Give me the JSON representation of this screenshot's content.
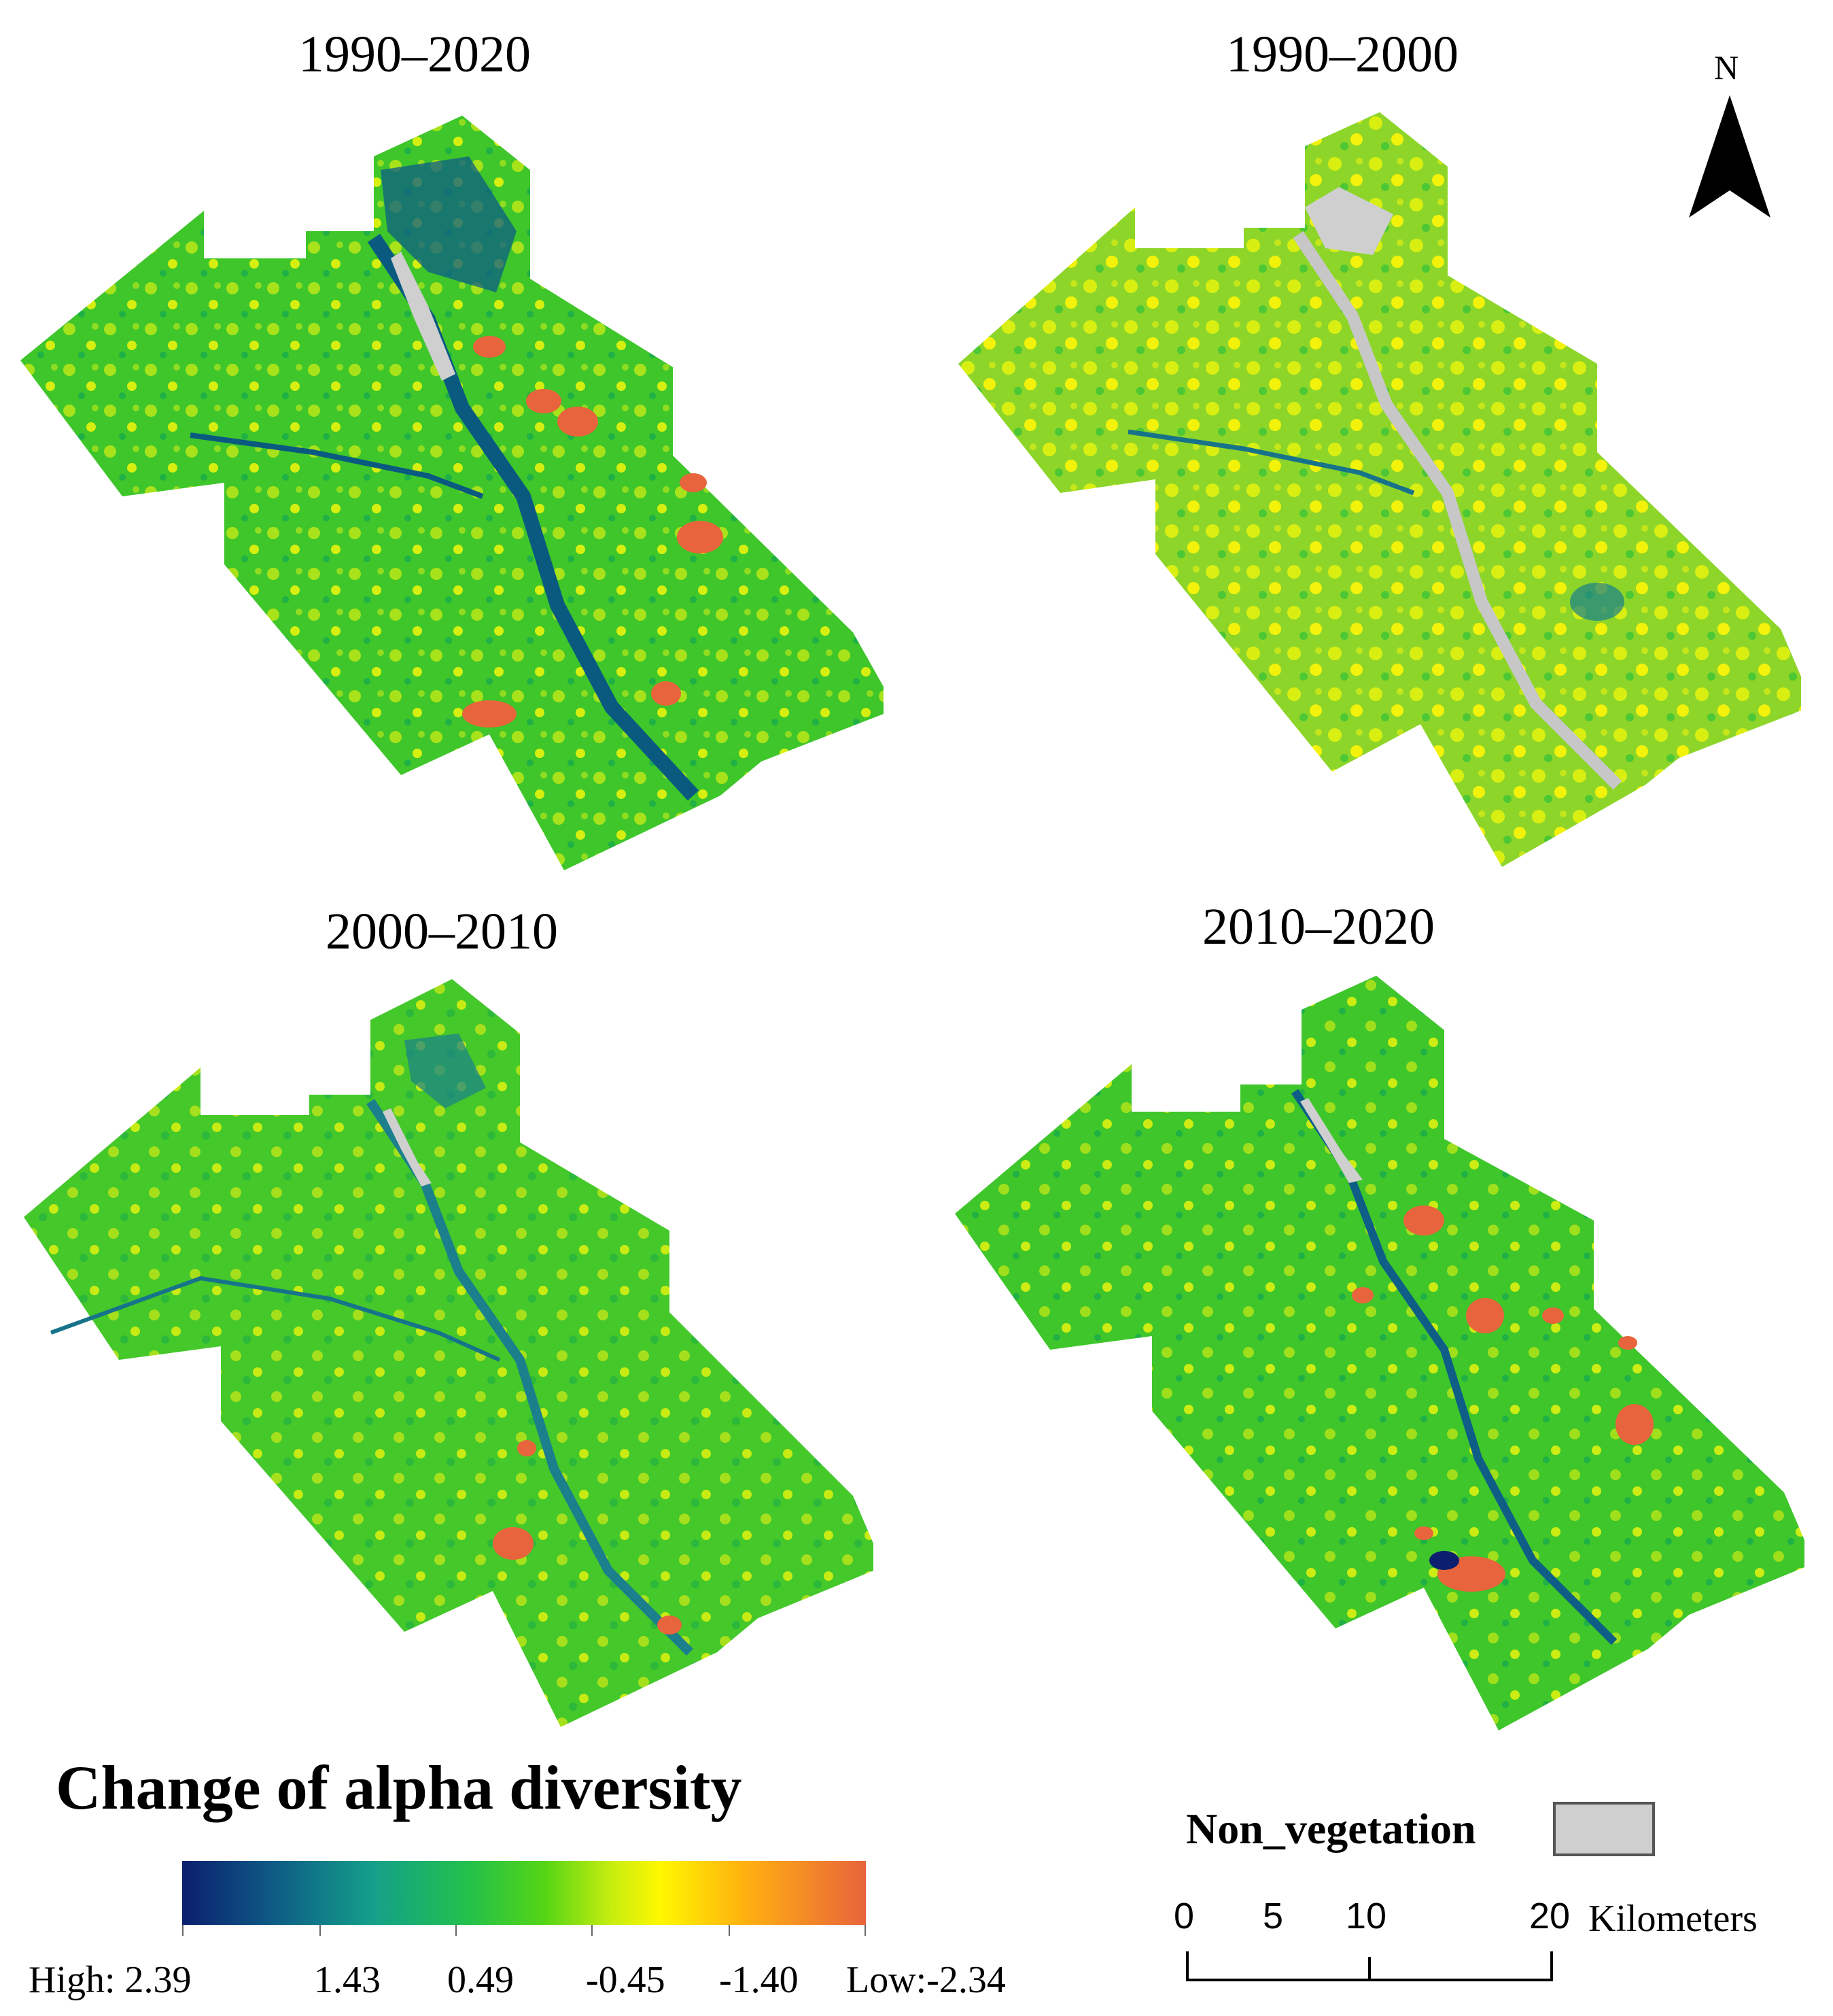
{
  "panels": [
    {
      "title": "1990–2020",
      "period_key": "p1"
    },
    {
      "title": "1990–2000",
      "period_key": "p2"
    },
    {
      "title": "2000–2010",
      "period_key": "p3"
    },
    {
      "title": "2010–2020",
      "period_key": "p4"
    }
  ],
  "north_arrow": {
    "label": "N"
  },
  "legend": {
    "title": "Change of alpha diversity",
    "labels": [
      "High: 2.39",
      "1.43",
      "0.49",
      "-0.45",
      "-1.40",
      "Low:-2.34"
    ],
    "colors": {
      "high": "#0b1f6e",
      "mid_high": "#14a08a",
      "mid": "#23c14a",
      "neutral": "#fff700",
      "low": "#e8643c"
    }
  },
  "non_vegetation": {
    "label": "Non_vegetation",
    "color": "#cfcfcf"
  },
  "scale_bar": {
    "ticks": [
      "0",
      "5",
      "10",
      "20"
    ],
    "unit": "Kilometers"
  }
}
